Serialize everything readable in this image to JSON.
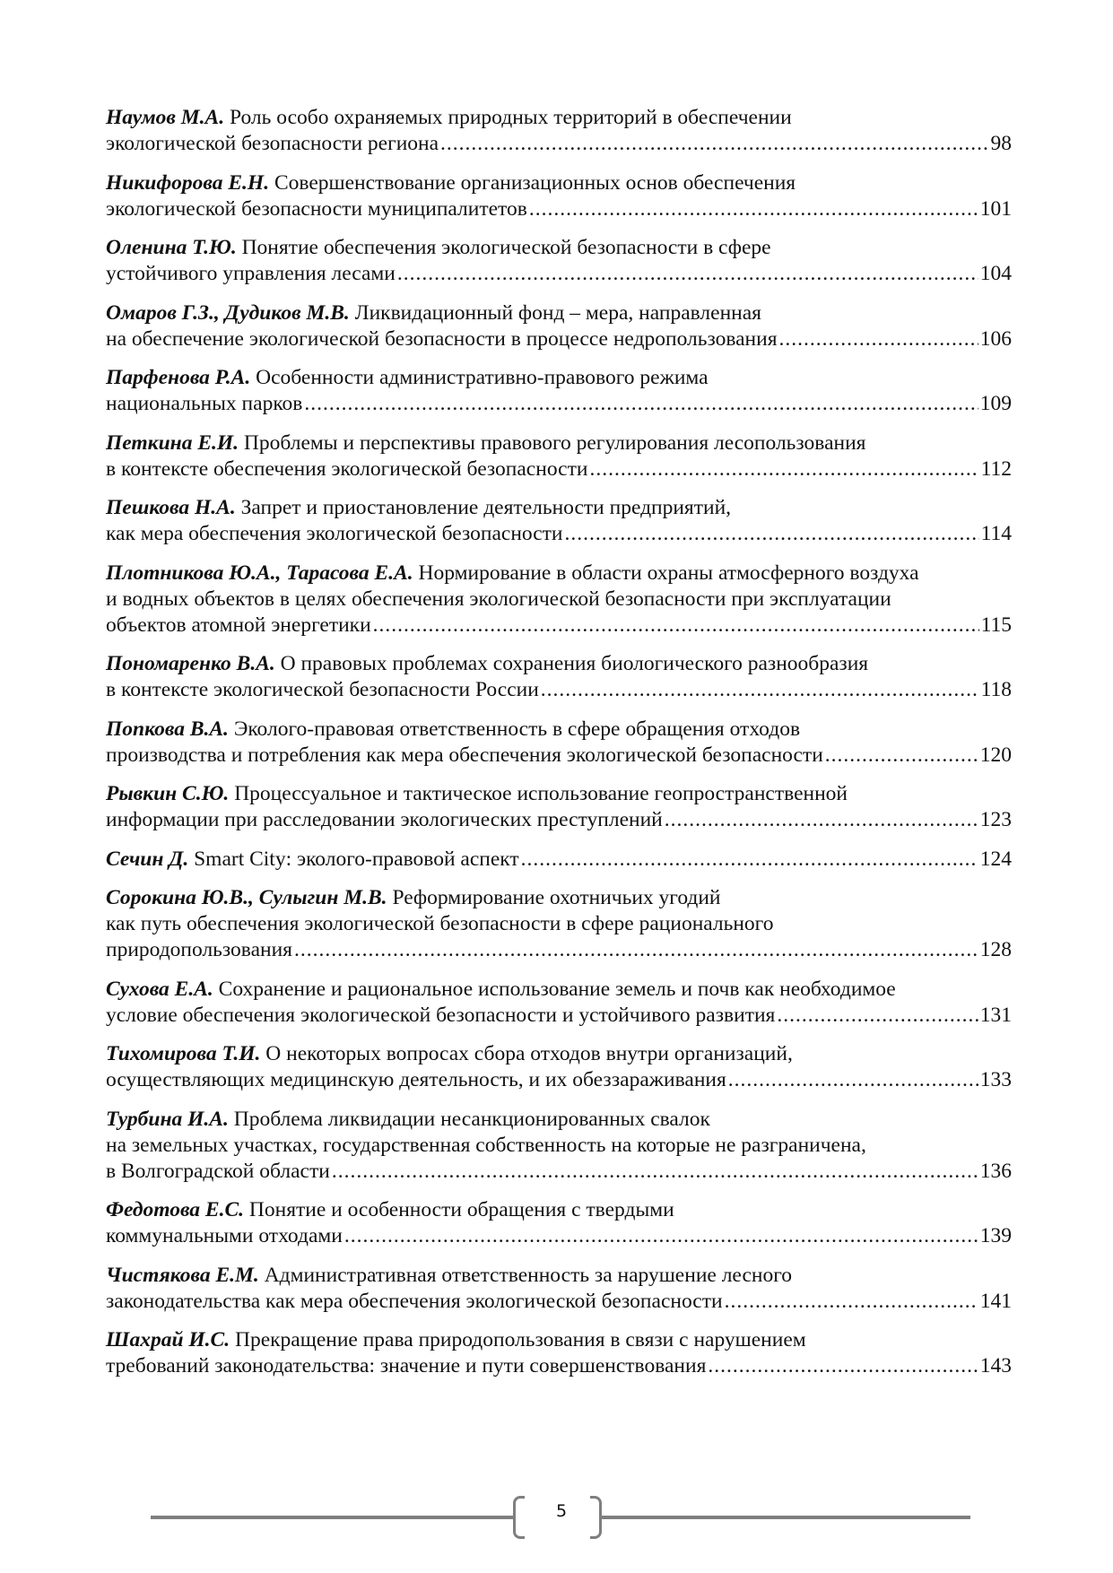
{
  "entries": [
    {
      "author": "Наумов М.А.",
      "lines": [
        " Роль особо охраняемых природных территорий в обеспечении",
        "экологической безопасности региона"
      ],
      "page": "98"
    },
    {
      "author": "Никифорова Е.Н.",
      "lines": [
        " Совершенствование организационных основ обеспечения",
        "экологической безопасности муниципалитетов"
      ],
      "page": "101"
    },
    {
      "author": "Оленина Т.Ю.",
      "lines": [
        " Понятие обеспечения экологической безопасности в сфере",
        "устойчивого управления лесами"
      ],
      "page": "104"
    },
    {
      "author": "Омаров Г.З., Дудиков М.В.",
      "lines": [
        " Ликвидационный фонд – мера, направленная",
        "на обеспечение экологической безопасности в процессе недропользования"
      ],
      "page": "106"
    },
    {
      "author": "Парфенова Р.А.",
      "lines": [
        " Особенности административно-правового режима",
        "национальных парков"
      ],
      "page": "109"
    },
    {
      "author": "Петкина Е.И.",
      "lines": [
        " Проблемы и перспективы правового регулирования лесопользования",
        "в контексте обеспечения экологической безопасности"
      ],
      "page": "112"
    },
    {
      "author": "Пешкова Н.А.",
      "lines": [
        " Запрет и приостановление деятельности предприятий,",
        "как мера обеспечения экологической безопасности"
      ],
      "page": "114"
    },
    {
      "author": "Плотникова Ю.А., Тарасова Е.А.",
      "lines": [
        " Нормирование в области охраны атмосферного воздуха",
        "и водных объектов в целях обеспечения экологической безопасности при эксплуатации",
        "объектов атомной энергетики"
      ],
      "page": "115"
    },
    {
      "author": "Пономаренко В.А.",
      "lines": [
        " О правовых проблемах сохранения биологического разнообразия",
        "в контексте экологической безопасности России"
      ],
      "page": "118"
    },
    {
      "author": "Попкова В.А.",
      "lines": [
        " Эколого-правовая ответственность в сфере обращения отходов",
        "производства и потребления как мера обеспечения экологической безопасности"
      ],
      "page": "120"
    },
    {
      "author": "Рывкин С.Ю.",
      "lines": [
        " Процессуальное и тактическое использование геопространственной",
        "информации при расследовании экологических преступлений"
      ],
      "page": "123"
    },
    {
      "author": "Сечин Д.",
      "lines": [
        " Smart City: эколого-правовой аспект"
      ],
      "page": "124"
    },
    {
      "author": "Сорокина Ю.В., Сулыгин М.В.",
      "lines": [
        " Реформирование охотничьих угодий",
        "как путь обеспечения экологической безопасности в сфере рационального",
        "природопользования"
      ],
      "page": "128"
    },
    {
      "author": "Сухова Е.А.",
      "lines": [
        " Сохранение и рациональное использование земель и почв как необходимое",
        "условие обеспечения экологической безопасности и устойчивого развития"
      ],
      "page": "131"
    },
    {
      "author": "Тихомирова Т.И.",
      "lines": [
        " О некоторых вопросах сбора отходов внутри организаций,",
        "осуществляющих медицинскую деятельность, и их обеззараживания"
      ],
      "page": "133"
    },
    {
      "author": "Турбина И.А.",
      "lines": [
        " Проблема ликвидации несанкционированных свалок",
        "на земельных участках, государственная собственность на которые не разграничена,",
        "в Волгоградской области"
      ],
      "page": "136"
    },
    {
      "author": "Федотова Е.С.",
      "lines": [
        " Понятие и особенности обращения с твердыми",
        "коммунальными отходами"
      ],
      "page": "139"
    },
    {
      "author": "Чистякова Е.М.",
      "lines": [
        " Административная ответственность за нарушение лесного",
        "законодательства как мера обеспечения экологической безопасности"
      ],
      "page": "141"
    },
    {
      "author": "Шахрай И.С.",
      "lines": [
        " Прекращение права природопользования в связи с нарушением",
        "требований законодательства: значение и пути совершенствования"
      ],
      "page": "143"
    }
  ],
  "footer": {
    "page_number": "5",
    "rule_color": "#7f7f7f"
  }
}
